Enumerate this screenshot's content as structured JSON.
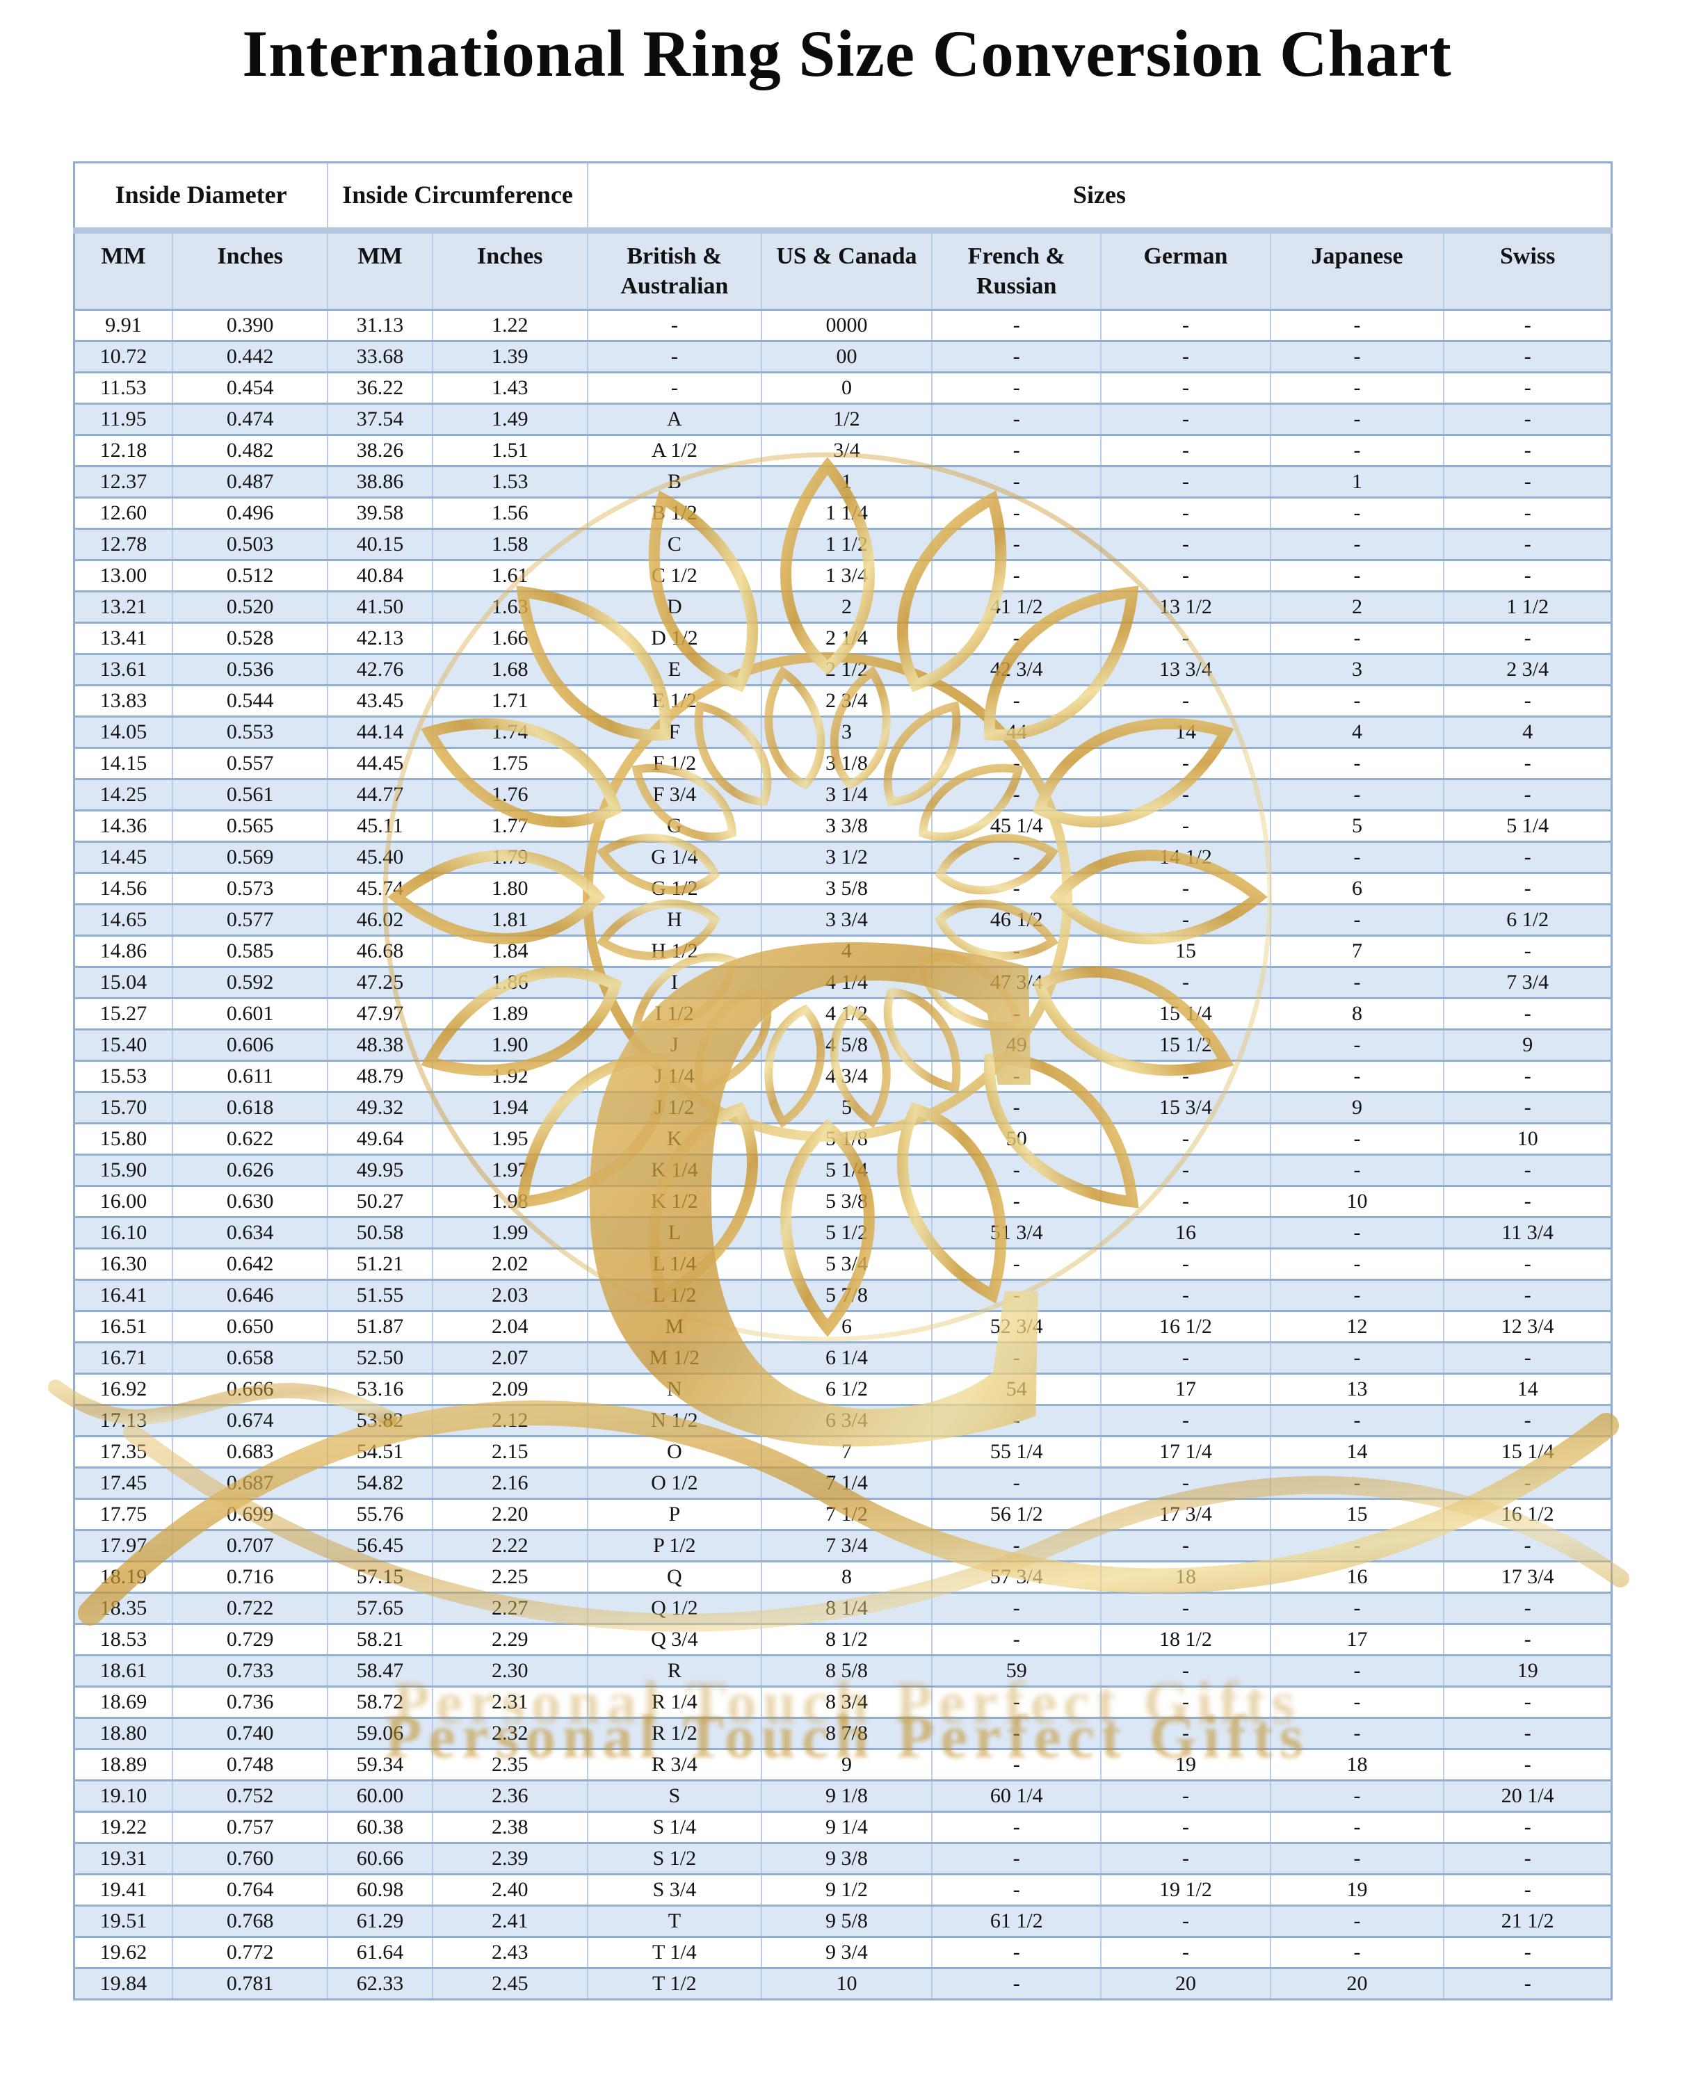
{
  "title": "International Ring Size Conversion Chart",
  "table": {
    "group_headers": [
      {
        "label": "Inside Diameter",
        "colspan": 2
      },
      {
        "label": "Inside Circumference",
        "colspan": 2
      },
      {
        "label": "Sizes",
        "colspan": 6
      }
    ],
    "columns": [
      "MM",
      "Inches",
      "MM",
      "Inches",
      "British & Australian",
      "US & Canada",
      "French & Russian",
      "German",
      "Japanese",
      "Swiss"
    ],
    "rows": [
      [
        "9.91",
        "0.390",
        "31.13",
        "1.22",
        "-",
        "0000",
        "-",
        "-",
        "-",
        "-"
      ],
      [
        "10.72",
        "0.442",
        "33.68",
        "1.39",
        "-",
        "00",
        "-",
        "-",
        "-",
        "-"
      ],
      [
        "11.53",
        "0.454",
        "36.22",
        "1.43",
        "-",
        "0",
        "-",
        "-",
        "-",
        "-"
      ],
      [
        "11.95",
        "0.474",
        "37.54",
        "1.49",
        "A",
        "1/2",
        "-",
        "-",
        "-",
        "-"
      ],
      [
        "12.18",
        "0.482",
        "38.26",
        "1.51",
        "A 1/2",
        "3/4",
        "-",
        "-",
        "-",
        "-"
      ],
      [
        "12.37",
        "0.487",
        "38.86",
        "1.53",
        "B",
        "1",
        "-",
        "-",
        "1",
        "-"
      ],
      [
        "12.60",
        "0.496",
        "39.58",
        "1.56",
        "B 1/2",
        "1 1/4",
        "-",
        "-",
        "-",
        "-"
      ],
      [
        "12.78",
        "0.503",
        "40.15",
        "1.58",
        "C",
        "1 1/2",
        "-",
        "-",
        "-",
        "-"
      ],
      [
        "13.00",
        "0.512",
        "40.84",
        "1.61",
        "C 1/2",
        "1 3/4",
        "-",
        "-",
        "-",
        "-"
      ],
      [
        "13.21",
        "0.520",
        "41.50",
        "1.63",
        "D",
        "2",
        "41 1/2",
        "13 1/2",
        "2",
        "1 1/2"
      ],
      [
        "13.41",
        "0.528",
        "42.13",
        "1.66",
        "D 1/2",
        "2 1/4",
        "-",
        "-",
        "-",
        "-"
      ],
      [
        "13.61",
        "0.536",
        "42.76",
        "1.68",
        "E",
        "2 1/2",
        "42 3/4",
        "13 3/4",
        "3",
        "2 3/4"
      ],
      [
        "13.83",
        "0.544",
        "43.45",
        "1.71",
        "E 1/2",
        "2 3/4",
        "-",
        "-",
        "-",
        "-"
      ],
      [
        "14.05",
        "0.553",
        "44.14",
        "1.74",
        "F",
        "3",
        "44",
        "14",
        "4",
        "4"
      ],
      [
        "14.15",
        "0.557",
        "44.45",
        "1.75",
        "F 1/2",
        "3 1/8",
        "-",
        "-",
        "-",
        "-"
      ],
      [
        "14.25",
        "0.561",
        "44.77",
        "1.76",
        "F 3/4",
        "3 1/4",
        "-",
        "-",
        "-",
        "-"
      ],
      [
        "14.36",
        "0.565",
        "45.11",
        "1.77",
        "G",
        "3 3/8",
        "45 1/4",
        "-",
        "5",
        "5 1/4"
      ],
      [
        "14.45",
        "0.569",
        "45.40",
        "1.79",
        "G 1/4",
        "3 1/2",
        "-",
        "14 1/2",
        "-",
        "-"
      ],
      [
        "14.56",
        "0.573",
        "45.74",
        "1.80",
        "G 1/2",
        "3 5/8",
        "-",
        "-",
        "6",
        "-"
      ],
      [
        "14.65",
        "0.577",
        "46.02",
        "1.81",
        "H",
        "3 3/4",
        "46 1/2",
        "-",
        "-",
        "6 1/2"
      ],
      [
        "14.86",
        "0.585",
        "46.68",
        "1.84",
        "H 1/2",
        "4",
        "-",
        "15",
        "7",
        "-"
      ],
      [
        "15.04",
        "0.592",
        "47.25",
        "1.86",
        "I",
        "4 1/4",
        "47 3/4",
        "-",
        "-",
        "7 3/4"
      ],
      [
        "15.27",
        "0.601",
        "47.97",
        "1.89",
        "I 1/2",
        "4 1/2",
        "-",
        "15 1/4",
        "8",
        "-"
      ],
      [
        "15.40",
        "0.606",
        "48.38",
        "1.90",
        "J",
        "4 5/8",
        "49",
        "15 1/2",
        "-",
        "9"
      ],
      [
        "15.53",
        "0.611",
        "48.79",
        "1.92",
        "J 1/4",
        "4 3/4",
        "-",
        "-",
        "-",
        "-"
      ],
      [
        "15.70",
        "0.618",
        "49.32",
        "1.94",
        "J 1/2",
        "5",
        "-",
        "15 3/4",
        "9",
        "-"
      ],
      [
        "15.80",
        "0.622",
        "49.64",
        "1.95",
        "K",
        "5 1/8",
        "50",
        "-",
        "-",
        "10"
      ],
      [
        "15.90",
        "0.626",
        "49.95",
        "1.97",
        "K 1/4",
        "5 1/4",
        "-",
        "-",
        "-",
        "-"
      ],
      [
        "16.00",
        "0.630",
        "50.27",
        "1.98",
        "K 1/2",
        "5 3/8",
        "-",
        "-",
        "10",
        "-"
      ],
      [
        "16.10",
        "0.634",
        "50.58",
        "1.99",
        "L",
        "5 1/2",
        "51 3/4",
        "16",
        "-",
        "11 3/4"
      ],
      [
        "16.30",
        "0.642",
        "51.21",
        "2.02",
        "L 1/4",
        "5 3/4",
        "-",
        "-",
        "-",
        "-"
      ],
      [
        "16.41",
        "0.646",
        "51.55",
        "2.03",
        "L 1/2",
        "5 7/8",
        "-",
        "-",
        "-",
        "-"
      ],
      [
        "16.51",
        "0.650",
        "51.87",
        "2.04",
        "M",
        "6",
        "52 3/4",
        "16 1/2",
        "12",
        "12 3/4"
      ],
      [
        "16.71",
        "0.658",
        "52.50",
        "2.07",
        "M 1/2",
        "6 1/4",
        "-",
        "-",
        "-",
        "-"
      ],
      [
        "16.92",
        "0.666",
        "53.16",
        "2.09",
        "N",
        "6 1/2",
        "54",
        "17",
        "13",
        "14"
      ],
      [
        "17.13",
        "0.674",
        "53.82",
        "2.12",
        "N 1/2",
        "6 3/4",
        "-",
        "-",
        "-",
        "-"
      ],
      [
        "17.35",
        "0.683",
        "54.51",
        "2.15",
        "O",
        "7",
        "55 1/4",
        "17 1/4",
        "14",
        "15 1/4"
      ],
      [
        "17.45",
        "0.687",
        "54.82",
        "2.16",
        "O 1/2",
        "7 1/4",
        "-",
        "-",
        "-",
        "-"
      ],
      [
        "17.75",
        "0.699",
        "55.76",
        "2.20",
        "P",
        "7 1/2",
        "56 1/2",
        "17 3/4",
        "15",
        "16 1/2"
      ],
      [
        "17.97",
        "0.707",
        "56.45",
        "2.22",
        "P 1/2",
        "7 3/4",
        "-",
        "-",
        "-",
        "-"
      ],
      [
        "18.19",
        "0.716",
        "57.15",
        "2.25",
        "Q",
        "8",
        "57 3/4",
        "18",
        "16",
        "17 3/4"
      ],
      [
        "18.35",
        "0.722",
        "57.65",
        "2.27",
        "Q 1/2",
        "8 1/4",
        "-",
        "-",
        "-",
        "-"
      ],
      [
        "18.53",
        "0.729",
        "58.21",
        "2.29",
        "Q 3/4",
        "8 1/2",
        "-",
        "18 1/2",
        "17",
        "-"
      ],
      [
        "18.61",
        "0.733",
        "58.47",
        "2.30",
        "R",
        "8 5/8",
        "59",
        "-",
        "-",
        "19"
      ],
      [
        "18.69",
        "0.736",
        "58.72",
        "2.31",
        "R 1/4",
        "8 3/4",
        "-",
        "-",
        "-",
        "-"
      ],
      [
        "18.80",
        "0.740",
        "59.06",
        "2.32",
        "R 1/2",
        "8 7/8",
        "-",
        "-",
        "-",
        "-"
      ],
      [
        "18.89",
        "0.748",
        "59.34",
        "2.35",
        "R 3/4",
        "9",
        "-",
        "19",
        "18",
        "-"
      ],
      [
        "19.10",
        "0.752",
        "60.00",
        "2.36",
        "S",
        "9 1/8",
        "60 1/4",
        "-",
        "-",
        "20 1/4"
      ],
      [
        "19.22",
        "0.757",
        "60.38",
        "2.38",
        "S 1/4",
        "9 1/4",
        "-",
        "-",
        "-",
        "-"
      ],
      [
        "19.31",
        "0.760",
        "60.66",
        "2.39",
        "S 1/2",
        "9 3/8",
        "-",
        "-",
        "-",
        "-"
      ],
      [
        "19.41",
        "0.764",
        "60.98",
        "2.40",
        "S 3/4",
        "9 1/2",
        "-",
        "19 1/2",
        "19",
        "-"
      ],
      [
        "19.51",
        "0.768",
        "61.29",
        "2.41",
        "T",
        "9 5/8",
        "61 1/2",
        "-",
        "-",
        "21 1/2"
      ],
      [
        "19.62",
        "0.772",
        "61.64",
        "2.43",
        "T 1/4",
        "9 3/4",
        "-",
        "-",
        "-",
        "-"
      ],
      [
        "19.84",
        "0.781",
        "62.33",
        "2.45",
        "T 1/2",
        "10",
        "-",
        "20",
        "20",
        "-"
      ]
    ]
  },
  "watermark": {
    "text": "Personal Touch Perfect Gifts"
  },
  "colors": {
    "row_alt": "#dce7f5",
    "grid_strong": "#92aed1",
    "grid_light": "#b7cde9",
    "header_bg": "#dbe5f2",
    "header_strip": "#b4c7de",
    "gold": "#cfa03b"
  }
}
